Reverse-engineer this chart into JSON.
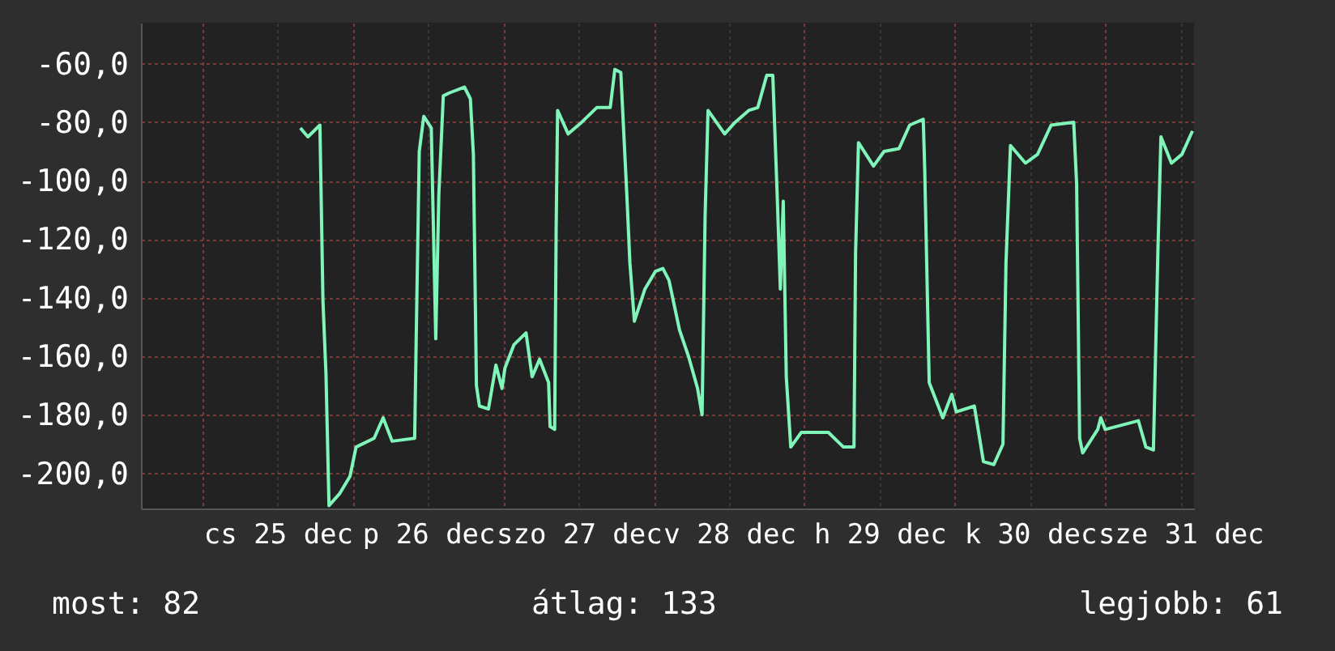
{
  "chart_data": {
    "type": "line",
    "annotations": [
      "most: 82",
      "átlag: 133",
      "legjobb: 61"
    ],
    "x": [
      "--12-25T15:36",
      "--12-25T16:48",
      "--12-25T18:43",
      "--12-25T19:12",
      "--12-25T19:41",
      "--12-25T20:10",
      "--12-25T21:50",
      "--12-25T23:31",
      "--12-26T00:29",
      "--12-26T03:22",
      "--12-26T04:48",
      "--12-26T06:14",
      "--12-26T09:50",
      "--12-26T10:05",
      "--12-26T10:34",
      "--12-26T11:17",
      "--12-26T12:29",
      "--12-26T13:12",
      "--12-26T13:41",
      "--12-26T14:24",
      "--12-26T15:22",
      "--12-26T17:46",
      "--12-26T18:43",
      "--12-26T19:12",
      "--12-26T19:41",
      "--12-26T20:10",
      "--12-26T21:36",
      "--12-26T22:48",
      "--12-26T23:46",
      "--12-27T00:14",
      "--12-27T01:41",
      "--12-27T03:36",
      "--12-27T04:34",
      "--12-27T05:46",
      "--12-27T07:12",
      "--12-27T07:26",
      "--12-27T08:10",
      "--12-27T08:24",
      "--12-27T08:38",
      "--12-27T10:19",
      "--12-27T12:29",
      "--12-27T14:53",
      "--12-27T17:02",
      "--12-27T17:46",
      "--12-27T18:43",
      "--12-27T19:41",
      "--12-27T20:10",
      "--12-27T20:53",
      "--12-27T22:34",
      "--12-28T00:14",
      "--12-28T01:26",
      "--12-28T02:24",
      "--12-28T04:05",
      "--12-28T05:31",
      "--12-28T06:58",
      "--12-28T07:41",
      "--12-28T08:10",
      "--12-28T08:38",
      "--12-28T11:17",
      "--12-28T12:58",
      "--12-28T15:07",
      "--12-28T16:34",
      "--12-28T18:00",
      "--12-28T18:58",
      "--12-28T19:41",
      "--12-28T20:10",
      "--12-28T20:38",
      "--12-28T21:07",
      "--12-28T21:50",
      "--12-28T23:31",
      "--12-29T03:50",
      "--12-29T06:14",
      "--12-29T07:55",
      "--12-29T08:10",
      "--12-29T08:38",
      "--12-29T11:02",
      "--12-29T12:43",
      "--12-29T15:07",
      "--12-29T16:48",
      "--12-29T18:58",
      "--12-29T19:12",
      "--12-29T19:55",
      "--12-29T22:05",
      "--12-29T23:31",
      "--12-30T00:14",
      "--12-30T03:07",
      "--12-30T04:34",
      "--12-30T06:14",
      "--12-30T07:41",
      "--12-30T08:10",
      "--12-30T08:53",
      "--12-30T11:17",
      "--12-30T13:12",
      "--12-30T15:22",
      "--12-30T18:58",
      "--12-30T19:26",
      "--12-30T19:55",
      "--12-30T20:24",
      "--12-30T22:48",
      "--12-30T23:17",
      "--12-31T00:00",
      "--12-31T05:17",
      "--12-31T06:29",
      "--12-31T07:41",
      "--12-31T08:24",
      "--12-31T08:53",
      "--12-31T10:34",
      "--12-31T12:14",
      "--12-31T13:55"
    ],
    "series": [
      {
        "color": "#7ff5b9",
        "values": [
          -82,
          -85,
          -81,
          -141,
          -166,
          -211,
          -207,
          -201,
          -191,
          -188,
          -181,
          -189,
          -188,
          -153,
          -90,
          -78,
          -82,
          -154,
          -105,
          -71,
          -70,
          -68,
          -72,
          -91,
          -170,
          -177,
          -178,
          -163,
          -171,
          -164,
          -156,
          -152,
          -167,
          -161,
          -169,
          -184,
          -185,
          -117,
          -76,
          -84,
          -80,
          -75,
          -75,
          -62,
          -63,
          -105,
          -128,
          -148,
          -137,
          -131,
          -130,
          -134,
          -151,
          -160,
          -171,
          -180,
          -112,
          -76,
          -84,
          -80,
          -76,
          -75,
          -64,
          -64,
          -106,
          -137,
          -107,
          -167,
          -191,
          -186,
          -186,
          -191,
          -191,
          -125,
          -87,
          -95,
          -90,
          -89,
          -81,
          -79,
          -96,
          -169,
          -181,
          -173,
          -179,
          -177,
          -196,
          -197,
          -190,
          -128,
          -88,
          -94,
          -91,
          -81,
          -80,
          -101,
          -188,
          -193,
          -185,
          -181,
          -185,
          -182,
          -191,
          -192,
          -124,
          -85,
          -94,
          -91,
          -83
        ]
      }
    ],
    "xlim": [
      "--12-24T14:10",
      "--12-31T14:10"
    ],
    "xticks": [
      {
        "value": "--12-25T00:00",
        "label": null
      },
      {
        "value": "--12-25T12:00",
        "label": "cs 25 dec"
      },
      {
        "value": "--12-26T00:00",
        "label": null
      },
      {
        "value": "--12-26T12:00",
        "label": "p 26 dec"
      },
      {
        "value": "--12-27T00:00",
        "label": null
      },
      {
        "value": "--12-27T12:00",
        "label": "szo 27 dec"
      },
      {
        "value": "--12-28T00:00",
        "label": null
      },
      {
        "value": "--12-28T12:00",
        "label": "v 28 dec"
      },
      {
        "value": "--12-29T00:00",
        "label": null
      },
      {
        "value": "--12-29T12:00",
        "label": "h 29 dec"
      },
      {
        "value": "--12-30T00:00",
        "label": null
      },
      {
        "value": "--12-30T12:00",
        "label": "k 30 dec"
      },
      {
        "value": "--12-31T00:00",
        "label": null
      },
      {
        "value": "--12-31T12:00",
        "label": "sze 31 dec"
      }
    ],
    "ylim": [
      -212,
      -46
    ],
    "yticks": [
      {
        "value": -200,
        "label": "-200,0"
      },
      {
        "value": -180,
        "label": "-180,0"
      },
      {
        "value": -160,
        "label": "-160,0"
      },
      {
        "value": -140,
        "label": "-140,0"
      },
      {
        "value": -120,
        "label": "-120,0"
      },
      {
        "value": -100,
        "label": "-100,0"
      },
      {
        "value": -80,
        "label": "-80,0"
      },
      {
        "value": -60,
        "label": "-60,0"
      }
    ],
    "grid": true,
    "line_style": "solid"
  }
}
